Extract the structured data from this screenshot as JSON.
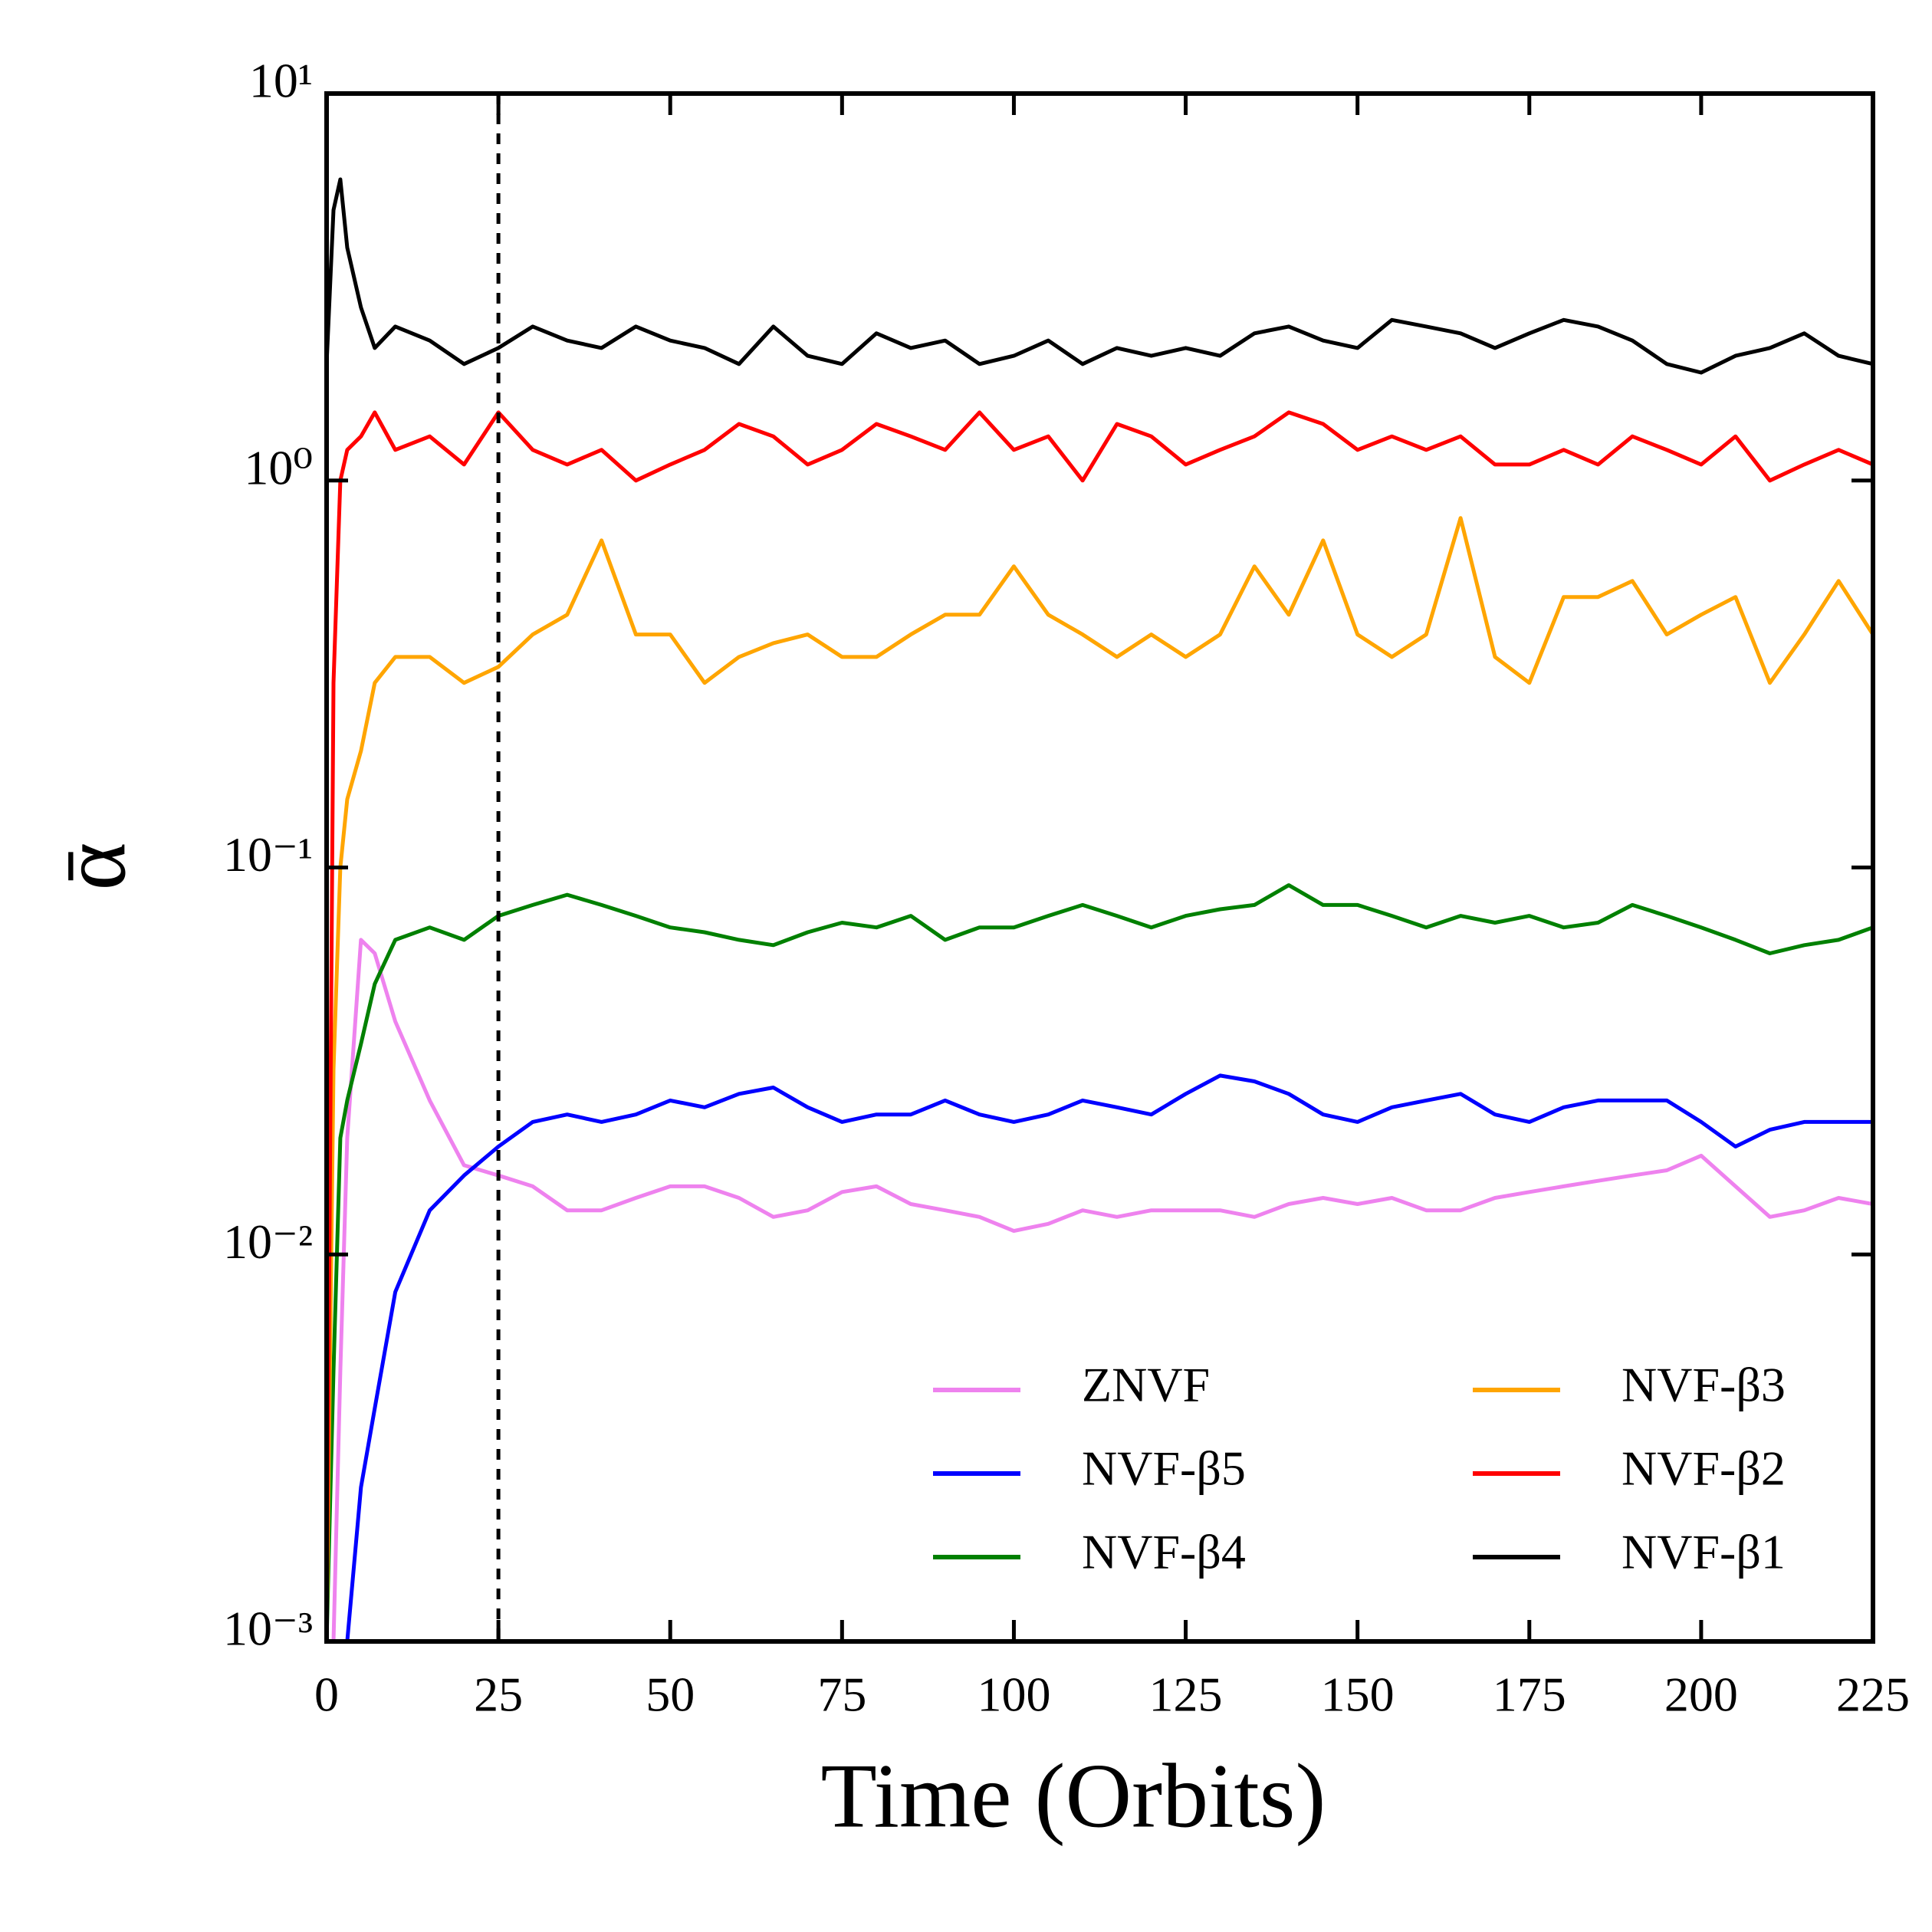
{
  "chart_data": {
    "type": "line",
    "x_label": "Time (Orbits)",
    "y_label": "ᾱ",
    "log_y": true,
    "legend": "lower right",
    "legend_columns": 2,
    "vline": 25,
    "xlim": [
      0,
      225
    ],
    "xticks": [
      0,
      25,
      50,
      75,
      100,
      125,
      150,
      175,
      200,
      225
    ],
    "ylim": [
      0.001,
      10
    ],
    "yticks": [
      {
        "value": 0.001,
        "label": "10⁻³"
      },
      {
        "value": 0.01,
        "label": "10⁻²"
      },
      {
        "value": 0.1,
        "label": "10⁻¹"
      },
      {
        "value": 1,
        "label": "10⁰"
      },
      {
        "value": 10,
        "label": "10¹"
      }
    ],
    "x": [
      0,
      1,
      2,
      3,
      5,
      7,
      10,
      15,
      20,
      25,
      30,
      35,
      40,
      45,
      50,
      55,
      60,
      65,
      70,
      75,
      80,
      85,
      90,
      95,
      100,
      105,
      110,
      115,
      120,
      125,
      130,
      135,
      140,
      145,
      150,
      155,
      160,
      165,
      170,
      175,
      180,
      185,
      190,
      195,
      200,
      205,
      210,
      215,
      220,
      225
    ],
    "series": [
      {
        "name": "ZNVF",
        "color": "#ee82ee",
        "values": [
          0.001,
          0.001,
          0.005,
          0.02,
          0.065,
          0.06,
          0.04,
          0.025,
          0.017,
          0.016,
          0.015,
          0.013,
          0.013,
          0.014,
          0.015,
          0.015,
          0.014,
          0.0125,
          0.013,
          0.0145,
          0.015,
          0.0135,
          0.013,
          0.0125,
          0.0115,
          0.012,
          0.013,
          0.0125,
          0.013,
          0.013,
          0.013,
          0.0125,
          0.0135,
          0.014,
          0.0135,
          0.014,
          0.013,
          0.013,
          0.014,
          0.0145,
          0.015,
          0.0155,
          0.016,
          0.0165,
          0.018,
          0.015,
          0.0125,
          0.013,
          0.014,
          0.0135
        ]
      },
      {
        "name": "NVF-β5",
        "color": "#0000ff",
        "values": [
          0.001,
          0.001,
          0.001,
          0.001,
          0.0025,
          0.004,
          0.008,
          0.013,
          0.016,
          0.019,
          0.022,
          0.023,
          0.022,
          0.023,
          0.025,
          0.024,
          0.026,
          0.027,
          0.024,
          0.022,
          0.023,
          0.023,
          0.025,
          0.023,
          0.022,
          0.023,
          0.025,
          0.024,
          0.023,
          0.026,
          0.029,
          0.028,
          0.026,
          0.023,
          0.022,
          0.024,
          0.025,
          0.026,
          0.023,
          0.022,
          0.024,
          0.025,
          0.025,
          0.025,
          0.022,
          0.019,
          0.021,
          0.022,
          0.022,
          0.022
        ]
      },
      {
        "name": "NVF-β4",
        "color": "#008000",
        "values": [
          0.001,
          0.005,
          0.02,
          0.025,
          0.035,
          0.05,
          0.065,
          0.07,
          0.065,
          0.075,
          0.08,
          0.085,
          0.08,
          0.075,
          0.07,
          0.068,
          0.065,
          0.063,
          0.068,
          0.072,
          0.07,
          0.075,
          0.065,
          0.07,
          0.07,
          0.075,
          0.08,
          0.075,
          0.07,
          0.075,
          0.078,
          0.08,
          0.09,
          0.08,
          0.08,
          0.075,
          0.07,
          0.075,
          0.072,
          0.075,
          0.07,
          0.072,
          0.08,
          0.075,
          0.07,
          0.065,
          0.06,
          0.063,
          0.065,
          0.07
        ]
      },
      {
        "name": "NVF-β3",
        "color": "#ffa500",
        "values": [
          0.001,
          0.03,
          0.1,
          0.15,
          0.2,
          0.3,
          0.35,
          0.35,
          0.3,
          0.33,
          0.4,
          0.45,
          0.7,
          0.4,
          0.4,
          0.3,
          0.35,
          0.38,
          0.4,
          0.35,
          0.35,
          0.4,
          0.45,
          0.45,
          0.6,
          0.45,
          0.4,
          0.35,
          0.4,
          0.35,
          0.4,
          0.6,
          0.45,
          0.7,
          0.4,
          0.35,
          0.4,
          0.8,
          0.35,
          0.3,
          0.5,
          0.5,
          0.55,
          0.4,
          0.45,
          0.5,
          0.3,
          0.4,
          0.55,
          0.4
        ]
      },
      {
        "name": "NVF-β2",
        "color": "#ff0000",
        "values": [
          0.001,
          0.3,
          1.0,
          1.2,
          1.3,
          1.5,
          1.2,
          1.3,
          1.1,
          1.5,
          1.2,
          1.1,
          1.2,
          1.0,
          1.1,
          1.2,
          1.4,
          1.3,
          1.1,
          1.2,
          1.4,
          1.3,
          1.2,
          1.5,
          1.2,
          1.3,
          1.0,
          1.4,
          1.3,
          1.1,
          1.2,
          1.3,
          1.5,
          1.4,
          1.2,
          1.3,
          1.2,
          1.3,
          1.1,
          1.1,
          1.2,
          1.1,
          1.3,
          1.2,
          1.1,
          1.3,
          1.0,
          1.1,
          1.2,
          1.1
        ]
      },
      {
        "name": "NVF-β1",
        "color": "#000000",
        "values": [
          2.0,
          5.0,
          6.0,
          4.0,
          2.8,
          2.2,
          2.5,
          2.3,
          2.0,
          2.2,
          2.5,
          2.3,
          2.2,
          2.5,
          2.3,
          2.2,
          2.0,
          2.5,
          2.1,
          2.0,
          2.4,
          2.2,
          2.3,
          2.0,
          2.1,
          2.3,
          2.0,
          2.2,
          2.1,
          2.2,
          2.1,
          2.4,
          2.5,
          2.3,
          2.2,
          2.6,
          2.5,
          2.4,
          2.2,
          2.4,
          2.6,
          2.5,
          2.3,
          2.0,
          1.9,
          2.1,
          2.2,
          2.4,
          2.1,
          2.0
        ]
      }
    ]
  }
}
